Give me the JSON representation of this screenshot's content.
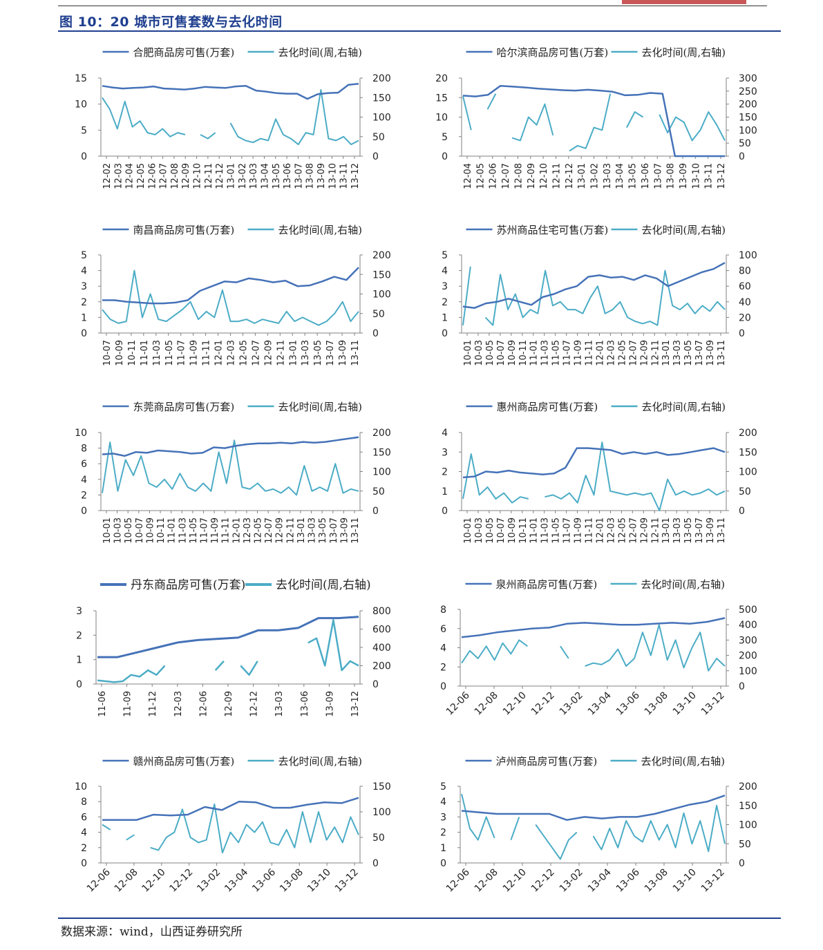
{
  "figure": {
    "title": "图 10：20 城市可售套数与去化时间",
    "source": "数据来源：wind，山西证券研究所"
  },
  "colors": {
    "supply": "#4572b8",
    "turnover": "#4bacc6",
    "axis": "#808080",
    "title": "#1f3f8f"
  },
  "chart_data": [
    {
      "type": "line",
      "series": [
        {
          "name": "合肥商品房可售(万套)",
          "axis": "left"
        },
        {
          "name": "去化时间(周,右轴)",
          "axis": "right"
        }
      ],
      "ylim": [
        0,
        15
      ],
      "y_ticks": [
        0,
        5,
        10,
        15
      ],
      "y2lim": [
        0,
        200
      ],
      "y2_ticks": [
        0,
        50,
        100,
        150,
        200
      ],
      "x_labels": [
        "12-02",
        "12-03",
        "12-04",
        "12-05",
        "12-06",
        "12-07",
        "12-08",
        "12-09",
        "12-10",
        "12-11",
        "12-12",
        "13-01",
        "13-02",
        "13-03",
        "13-04",
        "13-05",
        "13-06",
        "13-07",
        "13-08",
        "13-09",
        "13-10",
        "13-11",
        "13-12"
      ],
      "x_rotation": -90,
      "supply": [
        13.5,
        13.2,
        13.0,
        13.1,
        13.2,
        13.4,
        13.0,
        12.9,
        12.8,
        13.0,
        13.3,
        13.2,
        13.1,
        13.4,
        13.5,
        12.6,
        12.4,
        12.1,
        12.0,
        12.0,
        11.0,
        11.9,
        12.1,
        12.2,
        13.7,
        13.9
      ],
      "turnover": [
        150,
        120,
        70,
        140,
        75,
        90,
        60,
        55,
        70,
        50,
        60,
        55,
        null,
        55,
        45,
        60,
        null,
        85,
        50,
        40,
        35,
        45,
        40,
        95,
        55,
        45,
        30,
        60,
        55,
        170,
        45,
        40,
        50,
        30,
        40
      ]
    },
    {
      "type": "line",
      "series": [
        {
          "name": "哈尔滨商品房可售(万套)",
          "axis": "left"
        },
        {
          "name": "去化时间(周,右轴)",
          "axis": "right"
        }
      ],
      "ylim": [
        0,
        20
      ],
      "y_ticks": [
        0,
        5,
        10,
        15,
        20
      ],
      "y2lim": [
        0,
        300
      ],
      "y2_ticks": [
        0,
        50,
        100,
        150,
        200,
        250,
        300
      ],
      "x_labels": [
        "12-04",
        "12-05",
        "12-06",
        "12-07",
        "12-08",
        "12-09",
        "12-10",
        "12-11",
        "12-12",
        "13-01",
        "13-02",
        "13-03",
        "13-04",
        "13-05",
        "13-06",
        "13-07",
        "13-08",
        "13-09",
        "13-10",
        "13-11",
        "13-12"
      ],
      "x_rotation": -90,
      "supply": [
        15.5,
        15.3,
        15.7,
        18.0,
        17.8,
        17.6,
        17.3,
        17.1,
        16.9,
        16.8,
        17.0,
        16.8,
        16.5,
        15.6,
        15.7,
        16.2,
        16.0,
        0.0,
        0.0,
        0.0,
        0.0,
        0.0
      ],
      "turnover": [
        230,
        100,
        null,
        180,
        240,
        null,
        70,
        60,
        150,
        120,
        200,
        80,
        null,
        20,
        40,
        30,
        110,
        100,
        240,
        null,
        110,
        170,
        150,
        null,
        160,
        90,
        150,
        130,
        60,
        100,
        170,
        120,
        60
      ]
    },
    {
      "type": "line",
      "series": [
        {
          "name": "南昌商品房可售(万套)",
          "axis": "left"
        },
        {
          "name": "去化时间(周,右轴)",
          "axis": "right"
        }
      ],
      "ylim": [
        0,
        5
      ],
      "y_ticks": [
        0,
        1,
        2,
        3,
        4,
        5
      ],
      "y2lim": [
        0,
        200
      ],
      "y2_ticks": [
        0,
        50,
        100,
        150,
        200
      ],
      "x_labels": [
        "10-07",
        "10-09",
        "10-11",
        "11-01",
        "11-03",
        "11-05",
        "11-07",
        "11-09",
        "11-11",
        "12-01",
        "12-03",
        "12-05",
        "12-07",
        "12-09",
        "12-11",
        "13-01",
        "13-03",
        "13-05",
        "13-07",
        "13-09",
        "13-11"
      ],
      "x_rotation": -90,
      "supply": [
        2.1,
        2.1,
        2.0,
        1.95,
        1.9,
        1.9,
        1.95,
        2.1,
        2.7,
        3.0,
        3.3,
        3.25,
        3.5,
        3.4,
        3.25,
        3.35,
        3.0,
        3.05,
        3.3,
        3.6,
        3.4,
        4.2
      ],
      "turnover": [
        60,
        35,
        25,
        30,
        160,
        40,
        100,
        35,
        30,
        45,
        60,
        80,
        35,
        55,
        40,
        110,
        30,
        30,
        35,
        25,
        35,
        30,
        25,
        55,
        30,
        40,
        30,
        20,
        30,
        50,
        80,
        30,
        55
      ]
    },
    {
      "type": "line",
      "series": [
        {
          "name": "苏州商品住宅可售(万套)",
          "axis": "left"
        },
        {
          "name": "去化时间(周,右轴)",
          "axis": "right"
        }
      ],
      "ylim": [
        0,
        5
      ],
      "y_ticks": [
        0,
        1,
        2,
        3,
        4,
        5
      ],
      "y2lim": [
        0,
        100
      ],
      "y2_ticks": [
        0,
        20,
        40,
        60,
        80,
        100
      ],
      "x_labels": [
        "10-01",
        "10-03",
        "10-05",
        "10-07",
        "10-09",
        "10-11",
        "11-01",
        "11-03",
        "11-05",
        "11-07",
        "11-09",
        "11-11",
        "12-01",
        "12-03",
        "12-05",
        "12-07",
        "12-09",
        "12-11",
        "13-01",
        "13-03",
        "13-05",
        "13-07",
        "13-09",
        "13-11"
      ],
      "x_rotation": -90,
      "supply": [
        1.7,
        1.6,
        1.9,
        2.0,
        2.2,
        2.0,
        1.8,
        2.3,
        2.5,
        2.8,
        3.0,
        3.6,
        3.7,
        3.55,
        3.6,
        3.4,
        3.7,
        3.5,
        3.0,
        3.3,
        3.6,
        3.9,
        4.1,
        4.5
      ],
      "turnover": [
        10,
        85,
        null,
        20,
        10,
        75,
        30,
        50,
        20,
        30,
        25,
        80,
        35,
        40,
        30,
        30,
        25,
        45,
        60,
        25,
        30,
        40,
        20,
        15,
        12,
        15,
        10,
        80,
        35,
        30,
        38,
        25,
        35,
        28,
        40,
        30
      ]
    },
    {
      "type": "line",
      "series": [
        {
          "name": "东莞商品房可售(万套)",
          "axis": "left"
        },
        {
          "name": "去化时间(周,右轴)",
          "axis": "right"
        }
      ],
      "ylim": [
        0,
        10
      ],
      "y_ticks": [
        0,
        2,
        4,
        6,
        8,
        10
      ],
      "y2lim": [
        0,
        200
      ],
      "y2_ticks": [
        0,
        50,
        100,
        150,
        200
      ],
      "x_labels": [
        "10-01",
        "10-03",
        "10-05",
        "10-07",
        "10-09",
        "10-11",
        "11-01",
        "11-03",
        "11-05",
        "11-07",
        "11-09",
        "11-11",
        "12-01",
        "12-03",
        "12-05",
        "12-07",
        "12-09",
        "12-11",
        "13-01",
        "13-03",
        "13-05",
        "13-07",
        "13-09",
        "13-11"
      ],
      "x_rotation": -90,
      "supply": [
        7.2,
        7.3,
        7.0,
        7.5,
        7.4,
        7.7,
        7.6,
        7.5,
        7.3,
        7.4,
        8.1,
        8.0,
        8.3,
        8.5,
        8.6,
        8.6,
        8.7,
        8.6,
        8.8,
        8.7,
        8.8,
        9.0,
        9.2,
        9.4
      ],
      "turnover": [
        45,
        175,
        50,
        130,
        90,
        140,
        70,
        60,
        80,
        55,
        95,
        60,
        50,
        70,
        50,
        150,
        70,
        180,
        60,
        55,
        70,
        50,
        55,
        45,
        60,
        40,
        115,
        50,
        60,
        50,
        120,
        45,
        55,
        50
      ]
    },
    {
      "type": "line",
      "series": [
        {
          "name": "惠州商品房可售(万套)",
          "axis": "left"
        },
        {
          "name": "去化时间(周,右轴)",
          "axis": "right"
        }
      ],
      "ylim": [
        0,
        4
      ],
      "y_ticks": [
        0,
        1,
        2,
        3,
        4
      ],
      "y2lim": [
        0,
        200
      ],
      "y2_ticks": [
        0,
        50,
        100,
        150,
        200
      ],
      "x_labels": [
        "10-01",
        "10-03",
        "10-05",
        "10-07",
        "10-09",
        "10-11",
        "11-01",
        "11-03",
        "11-05",
        "11-07",
        "11-09",
        "11-11",
        "12-01",
        "12-03",
        "12-05",
        "12-07",
        "12-09",
        "12-11",
        "13-01",
        "13-03",
        "13-05",
        "13-07",
        "13-09",
        "13-11"
      ],
      "x_rotation": -90,
      "supply": [
        1.7,
        1.75,
        2.0,
        1.95,
        2.05,
        1.95,
        1.9,
        1.85,
        1.9,
        2.2,
        3.2,
        3.2,
        3.15,
        3.1,
        2.9,
        3.0,
        2.9,
        3.0,
        2.85,
        2.9,
        3.0,
        3.1,
        3.2,
        3.0
      ],
      "turnover": [
        30,
        145,
        40,
        60,
        30,
        45,
        20,
        35,
        30,
        null,
        35,
        40,
        30,
        45,
        20,
        90,
        40,
        175,
        50,
        45,
        40,
        45,
        40,
        45,
        0,
        80,
        40,
        50,
        40,
        45,
        55,
        40,
        50
      ]
    },
    {
      "type": "line",
      "series": [
        {
          "name": "丹东商品房可售(万套)",
          "axis": "left"
        },
        {
          "name": "去化时间(周,右轴)",
          "axis": "right"
        }
      ],
      "ylim": [
        0,
        3
      ],
      "y_ticks": [
        0,
        1,
        2,
        3
      ],
      "y2lim": [
        0,
        800
      ],
      "y2_ticks": [
        0,
        200,
        400,
        600,
        800
      ],
      "x_labels": [
        "11-06",
        "11-09",
        "11-12",
        "12-03",
        "12-06",
        "12-09",
        "12-12",
        "13-03",
        "13-06",
        "13-09",
        "13-12"
      ],
      "x_rotation": -90,
      "supply": [
        1.1,
        1.1,
        1.3,
        1.5,
        1.7,
        1.8,
        1.85,
        1.9,
        2.2,
        2.2,
        2.3,
        2.7,
        2.7,
        2.75
      ],
      "turnover": [
        40,
        30,
        20,
        30,
        100,
        80,
        150,
        100,
        200,
        null,
        250,
        null,
        200,
        null,
        150,
        250,
        null,
        200,
        100,
        250,
        null,
        80,
        null,
        250,
        null,
        450,
        500,
        200,
        700,
        150,
        250,
        200
      ]
    },
    {
      "type": "line",
      "series": [
        {
          "name": "泉州商品房可售(万套)",
          "axis": "left"
        },
        {
          "name": "去化时间(周,右轴)",
          "axis": "right"
        }
      ],
      "ylim": [
        0,
        8
      ],
      "y_ticks": [
        0,
        2,
        4,
        6,
        8
      ],
      "y2lim": [
        0,
        500
      ],
      "y2_ticks": [
        0,
        100,
        200,
        300,
        400,
        500
      ],
      "x_labels": [
        "12-06",
        "12-08",
        "12-10",
        "12-12",
        "13-02",
        "13-04",
        "13-06",
        "13-08",
        "13-10",
        "13-12"
      ],
      "x_rotation": -45,
      "supply": [
        5.1,
        5.3,
        5.6,
        5.8,
        6.0,
        6.1,
        6.5,
        6.6,
        6.5,
        6.4,
        6.4,
        6.5,
        6.6,
        6.5,
        6.7,
        7.1
      ],
      "turnover": [
        150,
        230,
        180,
        260,
        170,
        280,
        210,
        300,
        260,
        null,
        290,
        null,
        260,
        180,
        null,
        130,
        150,
        140,
        170,
        240,
        130,
        180,
        350,
        200,
        400,
        170,
        300,
        120,
        250,
        350,
        100,
        180,
        130
      ]
    },
    {
      "type": "line",
      "series": [
        {
          "name": "赣州商品房可售(万套)",
          "axis": "left"
        },
        {
          "name": "去化时间(周,右轴)",
          "axis": "right"
        }
      ],
      "ylim": [
        0,
        10
      ],
      "y_ticks": [
        0,
        2,
        4,
        6,
        8,
        10
      ],
      "y2lim": [
        0,
        150
      ],
      "y2_ticks": [
        0,
        50,
        100,
        150
      ],
      "x_labels": [
        "12-06",
        "12-08",
        "12-10",
        "12-12",
        "13-02",
        "13-04",
        "13-06",
        "13-08",
        "13-10",
        "13-12"
      ],
      "x_rotation": -45,
      "supply": [
        5.6,
        5.6,
        5.6,
        6.3,
        6.2,
        6.3,
        7.3,
        6.9,
        8.0,
        7.9,
        7.2,
        7.2,
        7.6,
        7.9,
        7.8,
        8.5
      ],
      "turnover": [
        75,
        65,
        null,
        45,
        55,
        null,
        30,
        25,
        50,
        60,
        105,
        50,
        40,
        45,
        115,
        20,
        60,
        40,
        75,
        60,
        80,
        40,
        35,
        65,
        30,
        100,
        40,
        100,
        45,
        70,
        40,
        90,
        55
      ]
    },
    {
      "type": "line",
      "series": [
        {
          "name": "泸州商品房可售(万套)",
          "axis": "left"
        },
        {
          "name": "去化时间(周,右轴)",
          "axis": "right"
        }
      ],
      "ylim": [
        0,
        5
      ],
      "y_ticks": [
        0,
        1,
        2,
        3,
        4,
        5
      ],
      "y2lim": [
        0,
        200
      ],
      "y2_ticks": [
        0,
        50,
        100,
        150,
        200
      ],
      "x_labels": [
        "12-06",
        "12-08",
        "12-10",
        "12-12",
        "13-02",
        "13-04",
        "13-06",
        "13-08",
        "13-10",
        "13-12"
      ],
      "x_rotation": -45,
      "supply": [
        3.4,
        3.3,
        3.2,
        3.2,
        3.2,
        3.2,
        2.8,
        3.0,
        2.9,
        3.0,
        3.0,
        3.2,
        3.5,
        3.8,
        4.0,
        4.4
      ],
      "turnover": [
        180,
        90,
        60,
        120,
        65,
        null,
        60,
        120,
        null,
        100,
        70,
        40,
        10,
        60,
        80,
        null,
        70,
        35,
        90,
        40,
        110,
        70,
        55,
        110,
        60,
        100,
        40,
        130,
        50,
        110,
        30,
        150,
        50
      ]
    }
  ]
}
